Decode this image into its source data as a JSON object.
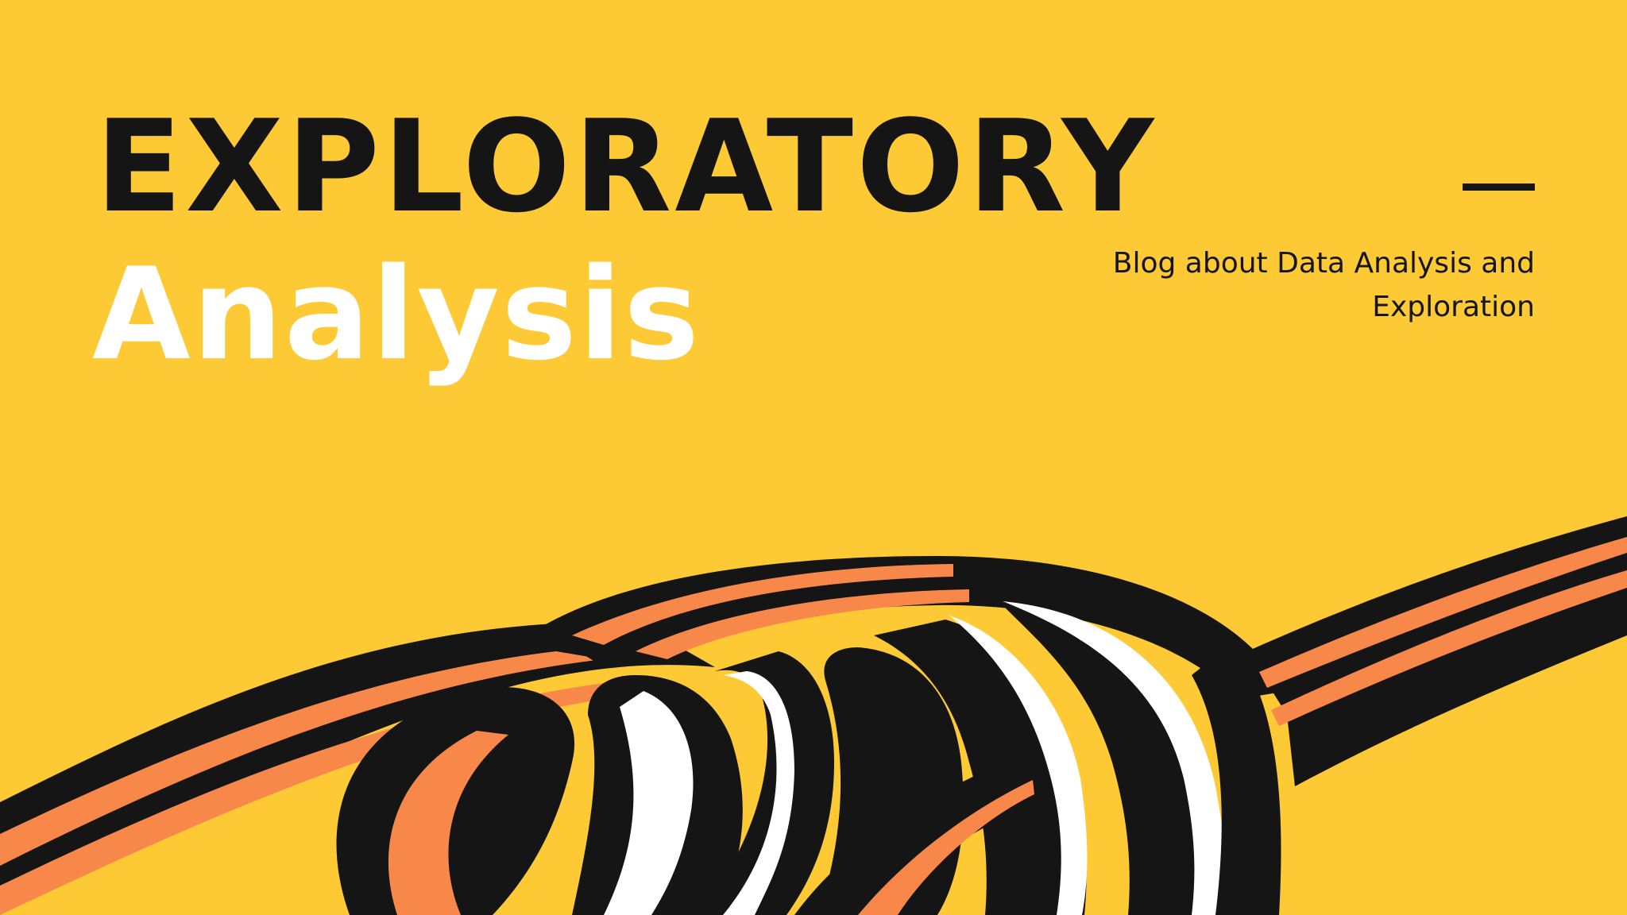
{
  "heading": {
    "line1": "EXPLORATORY",
    "line2": "Analysis"
  },
  "tagline": "Blog about Data Analysis and Exploration",
  "colors": {
    "background": "#FDC934",
    "ink": "#151515",
    "white": "#FFFFFF",
    "orange": "#F7884A"
  },
  "graphic": {
    "name": "tangled-ribbon-illustration"
  }
}
